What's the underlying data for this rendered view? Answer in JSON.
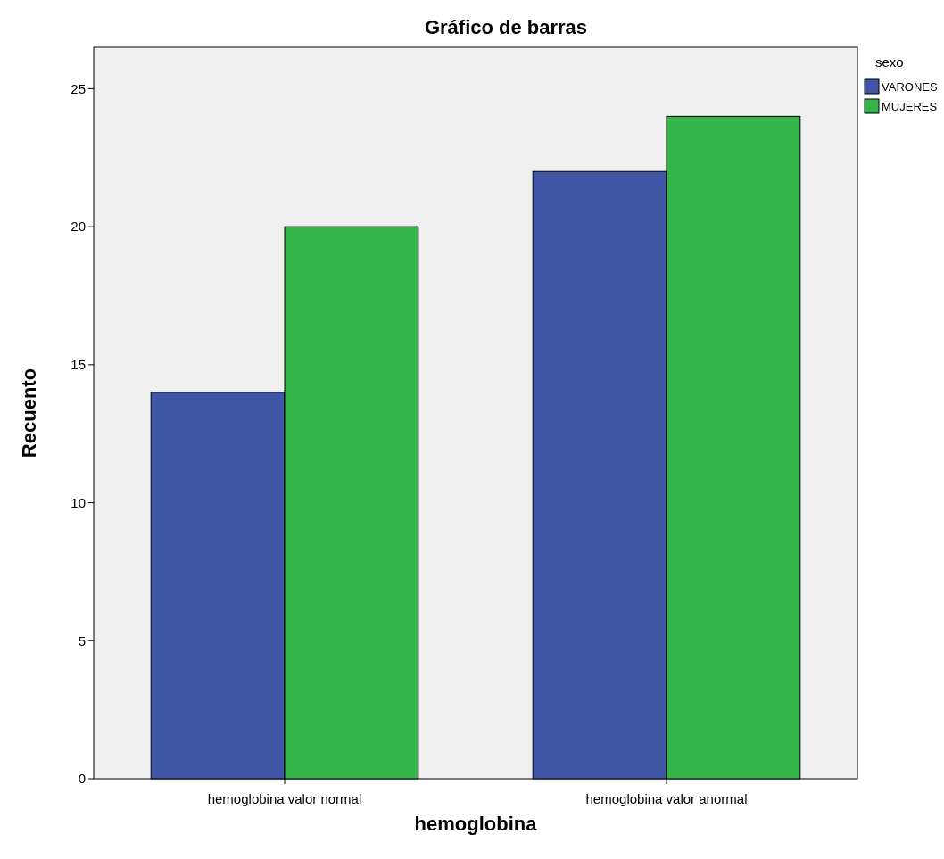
{
  "chart_data": {
    "type": "bar",
    "title": "Gráfico de barras",
    "xlabel": "hemoglobina",
    "ylabel": "Recuento",
    "legend_title": "sexo",
    "categories": [
      "hemoglobina valor normal",
      "hemoglobina valor anormal"
    ],
    "series": [
      {
        "name": "VARONES",
        "color": "#3f55a6",
        "values": [
          14,
          22
        ]
      },
      {
        "name": "MUJERES",
        "color": "#33b54a",
        "values": [
          20,
          24
        ]
      }
    ],
    "ylim": [
      0,
      26.5
    ],
    "yticks": [
      0,
      5,
      10,
      15,
      20,
      25
    ],
    "grid": false,
    "legend": "top right"
  }
}
